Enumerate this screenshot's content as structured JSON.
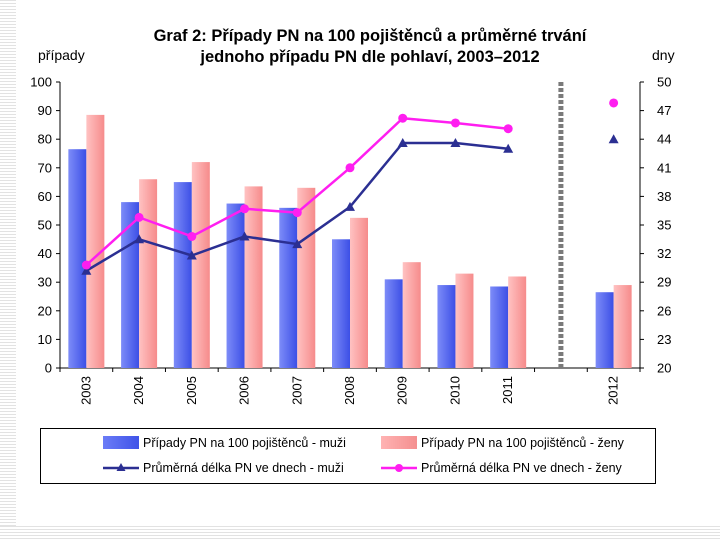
{
  "colors": {
    "bar_men": "#4a5ef0",
    "bar_women": "#fb9f9f",
    "line_men": "#2b2f92",
    "line_women": "#ff1ef0",
    "separator": "#7a7a7a"
  },
  "chart_data": {
    "type": "bar",
    "title": "Graf 2: Případy PN na 100 pojištěnců a průměrné trvání jednoho případu PN dle pohlaví, 2003–2012",
    "title_lines": [
      "Graf 2: Případy PN na 100 pojištěnců a průměrné trvání",
      "jednoho případu PN dle pohlaví, 2003–2012"
    ],
    "ylabel_left": "případy",
    "ylabel_right": "dny",
    "categories": [
      "2003",
      "2004",
      "2005",
      "2006",
      "2007",
      "2008",
      "2009",
      "2010",
      "2011",
      "",
      "2012"
    ],
    "y_left": {
      "range": [
        0,
        100
      ],
      "ticks": [
        "0",
        "10",
        "20",
        "30",
        "40",
        "50",
        "60",
        "70",
        "80",
        "90",
        "100"
      ]
    },
    "y_right": {
      "range": [
        20,
        50
      ],
      "ticks": [
        "20",
        "23",
        "26",
        "29",
        "32",
        "35",
        "38",
        "41",
        "44",
        "47",
        "50"
      ]
    },
    "separator_after_index": 9,
    "series": [
      {
        "name": "Případy PN na 100 pojištěnců - muži",
        "kind": "bar",
        "axis": "left",
        "values": [
          76.5,
          58,
          65,
          57.5,
          56,
          45,
          31,
          29,
          28.5,
          null,
          26.5
        ]
      },
      {
        "name": "Případy PN na 100 pojištěnců - ženy",
        "kind": "bar",
        "axis": "left",
        "values": [
          88.5,
          66,
          72,
          63.5,
          63,
          52.5,
          37,
          33,
          32,
          null,
          29
        ]
      },
      {
        "name": "Průměrná délka PN ve dnech - muži",
        "kind": "line",
        "axis": "right",
        "values": [
          30.2,
          33.5,
          31.8,
          33.8,
          33,
          36.9,
          43.6,
          43.6,
          43,
          null,
          44
        ]
      },
      {
        "name": "Průměrná délka PN ve dnech - ženy",
        "kind": "line",
        "axis": "right",
        "values": [
          30.8,
          35.8,
          33.8,
          36.7,
          36.3,
          41,
          46.2,
          45.7,
          45.1,
          null,
          47.8
        ]
      }
    ]
  },
  "legend": [
    {
      "label": "Případy PN na 100 pojištěnců - muži",
      "type": "bar-men"
    },
    {
      "label": "Případy PN na 100 pojištěnců - ženy",
      "type": "bar-women"
    },
    {
      "label": "Průměrná délka PN ve dnech - muži",
      "type": "line-men"
    },
    {
      "label": "Průměrná délka PN ve dnech - ženy",
      "type": "line-women"
    }
  ]
}
